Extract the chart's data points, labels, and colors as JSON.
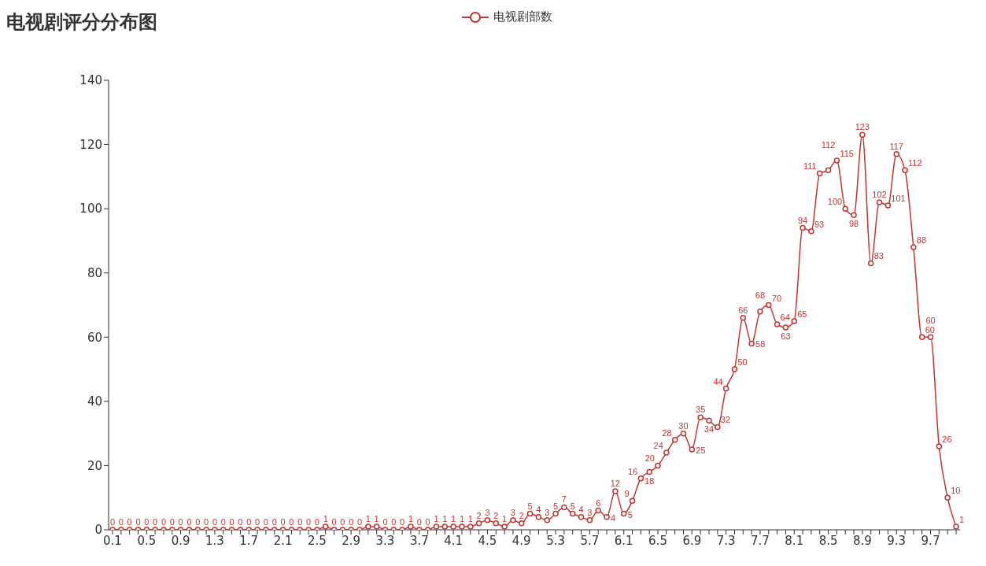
{
  "chart_data": {
    "type": "line",
    "title": "电视剧评分分布图",
    "categories": [
      "0.1",
      null,
      null,
      null,
      "0.5",
      null,
      null,
      null,
      "0.9",
      null,
      null,
      null,
      "1.3",
      null,
      null,
      null,
      "1.7",
      null,
      null,
      null,
      "2.1",
      null,
      null,
      null,
      "2.5",
      null,
      null,
      null,
      "2.9",
      null,
      null,
      null,
      "3.3",
      null,
      null,
      null,
      "3.7",
      null,
      null,
      null,
      "4.1",
      null,
      null,
      null,
      "4.5",
      null,
      null,
      null,
      "4.9",
      null,
      null,
      null,
      "5.3",
      null,
      null,
      null,
      "5.7",
      null,
      null,
      null,
      "6.1",
      null,
      null,
      null,
      "6.5",
      null,
      null,
      null,
      "6.9",
      null,
      null,
      null,
      "7.3",
      null,
      null,
      null,
      "7.7",
      null,
      null,
      null,
      "8.1",
      null,
      null,
      null,
      "8.5",
      null,
      null,
      null,
      "8.9",
      null,
      null,
      null,
      "9.3",
      null,
      null,
      null,
      "9.7",
      null,
      null,
      null
    ],
    "series": [
      {
        "name": "电视剧部数",
        "color": "#c23531",
        "values": [
          0,
          0,
          0,
          0,
          0,
          0,
          0,
          0,
          0,
          0,
          0,
          0,
          0,
          0,
          0,
          0,
          0,
          0,
          0,
          0,
          0,
          0,
          0,
          0,
          0,
          1,
          0,
          0,
          0,
          0,
          1,
          1,
          0,
          0,
          0,
          1,
          0,
          0,
          1,
          1,
          1,
          1,
          1,
          2,
          3,
          2,
          1,
          3,
          2,
          5,
          4,
          3,
          5,
          7,
          5,
          4,
          3,
          6,
          4,
          12,
          5,
          9,
          16,
          18,
          20,
          24,
          28,
          30,
          25,
          35,
          34,
          32,
          44,
          50,
          66,
          58,
          68,
          70,
          64,
          63,
          65,
          94,
          93,
          111,
          112,
          115,
          100,
          98,
          123,
          83,
          102,
          101,
          117,
          112,
          88,
          60,
          60,
          26,
          10,
          1
        ]
      }
    ],
    "ylim": [
      0,
      140
    ],
    "yticks": [
      0,
      20,
      40,
      60,
      80,
      100,
      120,
      140
    ],
    "grid": false,
    "legend": "top",
    "marker": "circle",
    "line_style": "solid",
    "data_labels": true
  }
}
